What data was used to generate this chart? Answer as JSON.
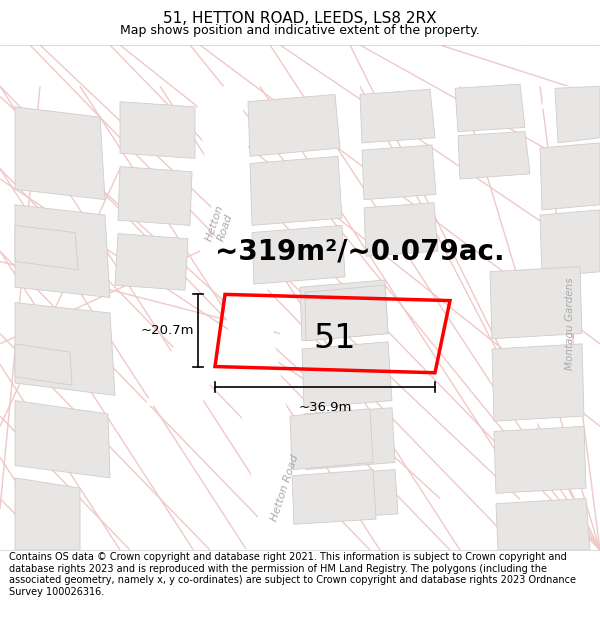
{
  "title": "51, HETTON ROAD, LEEDS, LS8 2RX",
  "subtitle": "Map shows position and indicative extent of the property.",
  "area_label": "~319m²/~0.079ac.",
  "plot_number": "51",
  "width_label": "~36.9m",
  "height_label": "~20.7m",
  "footer": "Contains OS data © Crown copyright and database right 2021. This information is subject to Crown copyright and database rights 2023 and is reproduced with the permission of HM Land Registry. The polygons (including the associated geometry, namely x, y co-ordinates) are subject to Crown copyright and database rights 2023 Ordnance Survey 100026316.",
  "bg_color": "#f5f3f2",
  "road_color": "#ffffff",
  "road_light_color": "#f0c8c8",
  "block_color": "#e8e6e5",
  "block_edge": "#d0ccca",
  "plot_color": "#ff0000",
  "text_color": "#000000",
  "road_label_color": "#aaaaaa",
  "title_fontsize": 11,
  "subtitle_fontsize": 9,
  "area_fontsize": 20,
  "plot_num_fontsize": 24,
  "dim_fontsize": 9.5,
  "footer_fontsize": 7,
  "road_label_fontsize": 8
}
